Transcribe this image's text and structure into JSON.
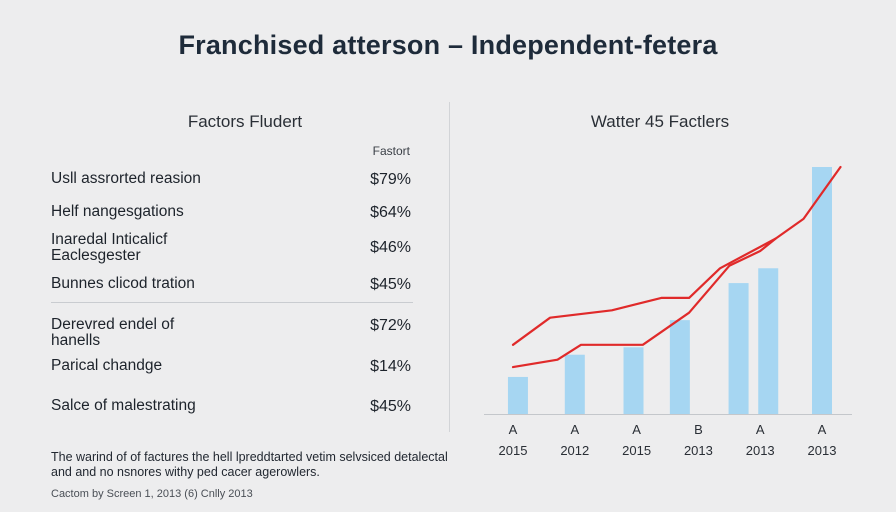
{
  "title": "Franchised atterson – Independent-fetera",
  "table": {
    "heading": "Factors Fludert",
    "column_header": "Fastort",
    "rows": [
      {
        "name": "Usll assrorted reasion",
        "value": "$79%"
      },
      {
        "name": "Helf nangesgations",
        "value": "$64%"
      },
      {
        "name": "Inaredal Inticalicf Eaclesgester",
        "value": "$46%"
      },
      {
        "name": "Bunnes clicod tration",
        "value": "$45%"
      },
      {
        "name": "Derevred endel of hanells",
        "value": "$72%"
      },
      {
        "name": "Parical chandge",
        "value": "$14%"
      },
      {
        "name": "Salce of malestrating",
        "value": "$45%"
      }
    ]
  },
  "footnote": "The warind of of factures the hell lpreddtarted vetim selvsiced detalectal and and no nsnores withy ped cacer agerowlers.",
  "credit": "Cactom by Screen 1, 2013 (6) Cnlly 2013",
  "colors": {
    "bar": "#a6d6f2",
    "line": "#e02a2a",
    "axis": "#c4c7cb"
  },
  "chart_data": {
    "type": "bar",
    "title": "Watter 45 Factlers",
    "xlabel": "",
    "ylabel": "",
    "categories": [
      {
        "top": "A",
        "bottom": "2015"
      },
      {
        "top": "A",
        "bottom": "2012"
      },
      {
        "top": "A",
        "bottom": "2015"
      },
      {
        "top": "B",
        "bottom": "2013"
      },
      {
        "top": "A",
        "bottom": "2013"
      },
      {
        "top": "A",
        "bottom": "2013"
      }
    ],
    "ylim": [
      0,
      100
    ],
    "grid": false,
    "series": [
      {
        "type": "bar",
        "x": [
          0.08,
          1.0,
          1.95,
          2.7,
          3.65,
          4.13,
          5.0
        ],
        "values": [
          15,
          24,
          27,
          38,
          53,
          59,
          100
        ]
      },
      {
        "type": "line",
        "x": [
          0.0,
          0.6,
          1.6,
          2.4,
          2.85,
          3.35,
          4.25,
          4.7,
          5.3
        ],
        "values": [
          28,
          39,
          42,
          47,
          47,
          59,
          71,
          79,
          100
        ]
      },
      {
        "type": "line",
        "x": [
          0.0,
          0.72,
          1.1,
          2.1,
          2.85,
          3.5,
          4.0,
          4.25
        ],
        "values": [
          19,
          22,
          28,
          28,
          41,
          60,
          66,
          71
        ]
      }
    ]
  }
}
